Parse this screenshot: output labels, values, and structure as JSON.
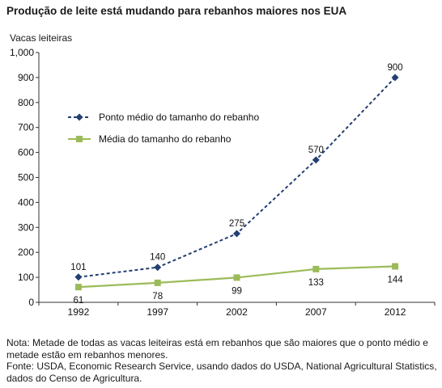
{
  "title": "Produção de leite está mudando para rebanhos maiores nos EUA",
  "notes": {
    "note": "Nota: Metade de todas as vacas leiteiras está em rebanhos que são maiores que o ponto médio e metade estão em rebanhos menores.",
    "source": "Fonte: USDA, Economic Research Service, usando dados do USDA, National Agricultural Statistics, dados do Censo de Agricultura."
  },
  "chart_data": {
    "type": "line",
    "title": "Produção de leite está mudando para rebanhos maiores nos EUA",
    "xlabel": "",
    "ylabel": "Vacas leiteiras",
    "categories": [
      "1992",
      "1997",
      "2002",
      "2007",
      "2012"
    ],
    "ylim": [
      0,
      1000
    ],
    "yticks": [
      "0",
      "100",
      "200",
      "300",
      "400",
      "500",
      "600",
      "700",
      "800",
      "900",
      "1,000"
    ],
    "grid": false,
    "legend_position": "top-left",
    "series": [
      {
        "name": "Ponto médio do tamanho do rebanho",
        "values": [
          101,
          140,
          275,
          570,
          900
        ],
        "labels": [
          "101",
          "140",
          "275",
          "570",
          "900"
        ],
        "color": "#243f72",
        "marker": "diamond",
        "line_style": "dashed"
      },
      {
        "name": "Média do tamanho do rebanho",
        "values": [
          61,
          78,
          99,
          133,
          144
        ],
        "labels": [
          "61",
          "78",
          "99",
          "133",
          "144"
        ],
        "color": "#9bbb59",
        "marker": "square",
        "line_style": "solid"
      }
    ]
  }
}
